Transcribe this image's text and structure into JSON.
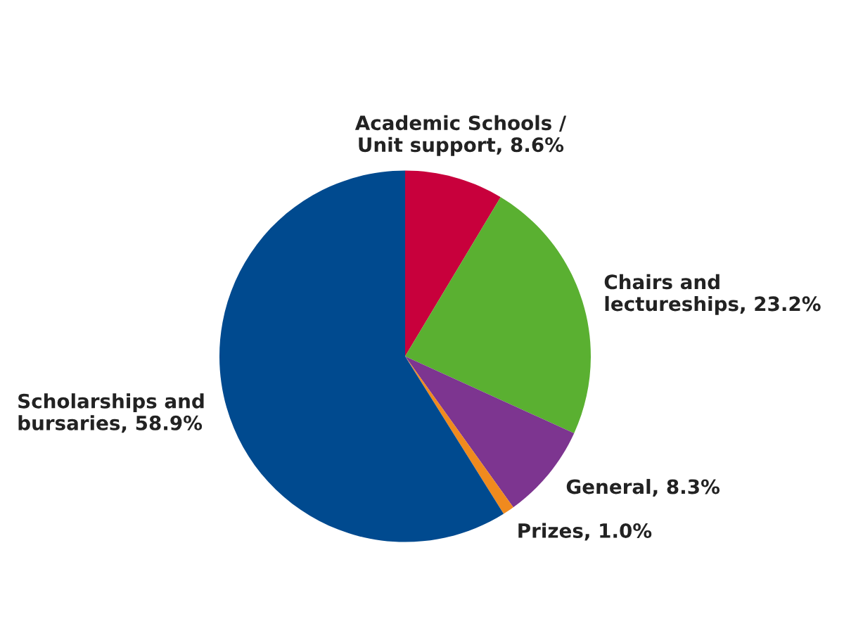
{
  "chart_data": {
    "type": "pie",
    "categories": [
      "Academic Schools / Unit support",
      "Chairs and lectureships",
      "General",
      "Prizes",
      "Scholarships and bursaries"
    ],
    "values": [
      8.6,
      23.2,
      8.3,
      1.0,
      58.9
    ],
    "value_labels": [
      "8.6%",
      "23.2%",
      "8.3%",
      "1.0%",
      "58.9%"
    ],
    "colors": [
      "#c8003c",
      "#5ab031",
      "#7d3590",
      "#f08a1e",
      "#004a8f"
    ],
    "legend": false
  }
}
